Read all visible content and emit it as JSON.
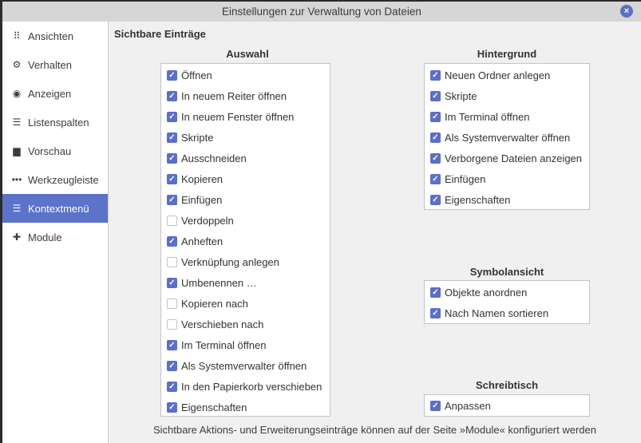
{
  "window": {
    "title": "Einstellungen zur Verwaltung von Dateien",
    "close_icon": "×"
  },
  "sidebar": {
    "items": [
      {
        "label": "Ansichten",
        "icon": "grid-icon",
        "glyph": "⠿",
        "selected": false
      },
      {
        "label": "Verhalten",
        "icon": "gear-icon",
        "glyph": "⚙",
        "selected": false
      },
      {
        "label": "Anzeigen",
        "icon": "eye-icon",
        "glyph": "◉",
        "selected": false
      },
      {
        "label": "Listenspalten",
        "icon": "list-icon",
        "glyph": "☰",
        "selected": false
      },
      {
        "label": "Vorschau",
        "icon": "image-icon",
        "glyph": "▆",
        "selected": false
      },
      {
        "label": "Werkzeugleiste",
        "icon": "dots-icon",
        "glyph": "•••",
        "selected": false
      },
      {
        "label": "Kontextmenü",
        "icon": "list-icon",
        "glyph": "☰",
        "selected": true
      },
      {
        "label": "Module",
        "icon": "puzzle-icon",
        "glyph": "✚",
        "selected": false
      }
    ]
  },
  "main": {
    "heading": "Sichtbare Einträge",
    "auswahl": {
      "title": "Auswahl",
      "items": [
        {
          "label": "Öffnen",
          "checked": true
        },
        {
          "label": "In neuem Reiter öffnen",
          "checked": true
        },
        {
          "label": "In neuem Fenster öffnen",
          "checked": true
        },
        {
          "label": "Skripte",
          "checked": true
        },
        {
          "label": "Ausschneiden",
          "checked": true
        },
        {
          "label": "Kopieren",
          "checked": true
        },
        {
          "label": "Einfügen",
          "checked": true
        },
        {
          "label": "Verdoppeln",
          "checked": false
        },
        {
          "label": "Anheften",
          "checked": true
        },
        {
          "label": "Verknüpfung anlegen",
          "checked": false
        },
        {
          "label": "Umbenennen …",
          "checked": true
        },
        {
          "label": "Kopieren nach",
          "checked": false
        },
        {
          "label": "Verschieben nach",
          "checked": false
        },
        {
          "label": "Im Terminal öffnen",
          "checked": true
        },
        {
          "label": "Als Systemverwalter öffnen",
          "checked": true
        },
        {
          "label": "In den Papierkorb verschieben",
          "checked": true
        },
        {
          "label": "Eigenschaften",
          "checked": true
        }
      ]
    },
    "hintergrund": {
      "title": "Hintergrund",
      "items": [
        {
          "label": "Neuen Ordner anlegen",
          "checked": true
        },
        {
          "label": "Skripte",
          "checked": true
        },
        {
          "label": "Im Terminal öffnen",
          "checked": true
        },
        {
          "label": "Als Systemverwalter öffnen",
          "checked": true
        },
        {
          "label": "Verborgene Dateien anzeigen",
          "checked": true
        },
        {
          "label": "Einfügen",
          "checked": true
        },
        {
          "label": "Eigenschaften",
          "checked": true
        }
      ]
    },
    "symbolansicht": {
      "title": "Symbolansicht",
      "items": [
        {
          "label": "Objekte anordnen",
          "checked": true
        },
        {
          "label": "Nach Namen sortieren",
          "checked": true
        }
      ]
    },
    "schreibtisch": {
      "title": "Schreibtisch",
      "items": [
        {
          "label": "Anpassen",
          "checked": true
        }
      ]
    },
    "footer": "Sichtbare Aktions- und Erweiterungseinträge können auf der Seite »Module« konfiguriert werden"
  },
  "colors": {
    "accent": "#5b6fc8",
    "selected": "#5b73c8"
  }
}
